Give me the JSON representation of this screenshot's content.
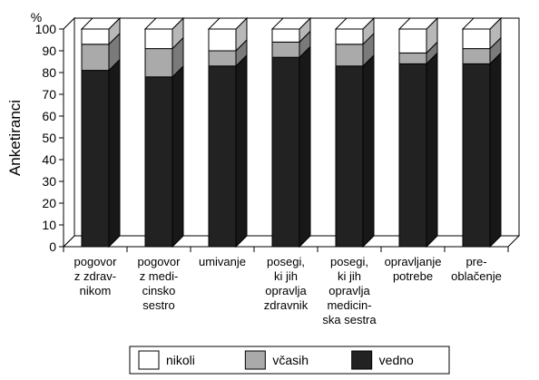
{
  "chart_data": {
    "type": "bar",
    "stacked": true,
    "style": "3d-column",
    "title": "",
    "ylabel": "Anketiranci",
    "yunit": "%",
    "ylim": [
      0,
      100
    ],
    "yticks": [
      0,
      10,
      20,
      30,
      40,
      50,
      60,
      70,
      80,
      90,
      100
    ],
    "grid": false,
    "legend_position": "bottom",
    "categories": [
      [
        "pogovor",
        "z zdrav-",
        "nikom"
      ],
      [
        "pogovor",
        "z medi-",
        "cinsko",
        "sestro"
      ],
      [
        "umivanje"
      ],
      [
        "posegi,",
        "ki jih",
        "opravlja",
        "zdravnik"
      ],
      [
        "posegi,",
        "ki jih",
        "opravlja",
        "medicin-",
        "ska sestra"
      ],
      [
        "opravljanje",
        "potrebe"
      ],
      [
        "pre-",
        "oblačenje"
      ]
    ],
    "series": [
      {
        "name": "vedno",
        "color": "#222222",
        "values": [
          81,
          78,
          83,
          87,
          83,
          84,
          84
        ]
      },
      {
        "name": "včasih",
        "color": "#aaaaaa",
        "values": [
          12,
          13,
          7,
          7,
          10,
          5,
          7
        ]
      },
      {
        "name": "nikoli",
        "color": "#ffffff",
        "values": [
          7,
          9,
          10,
          6,
          7,
          11,
          9
        ]
      }
    ],
    "legend_order": [
      "nikoli",
      "včasih",
      "vedno"
    ]
  }
}
